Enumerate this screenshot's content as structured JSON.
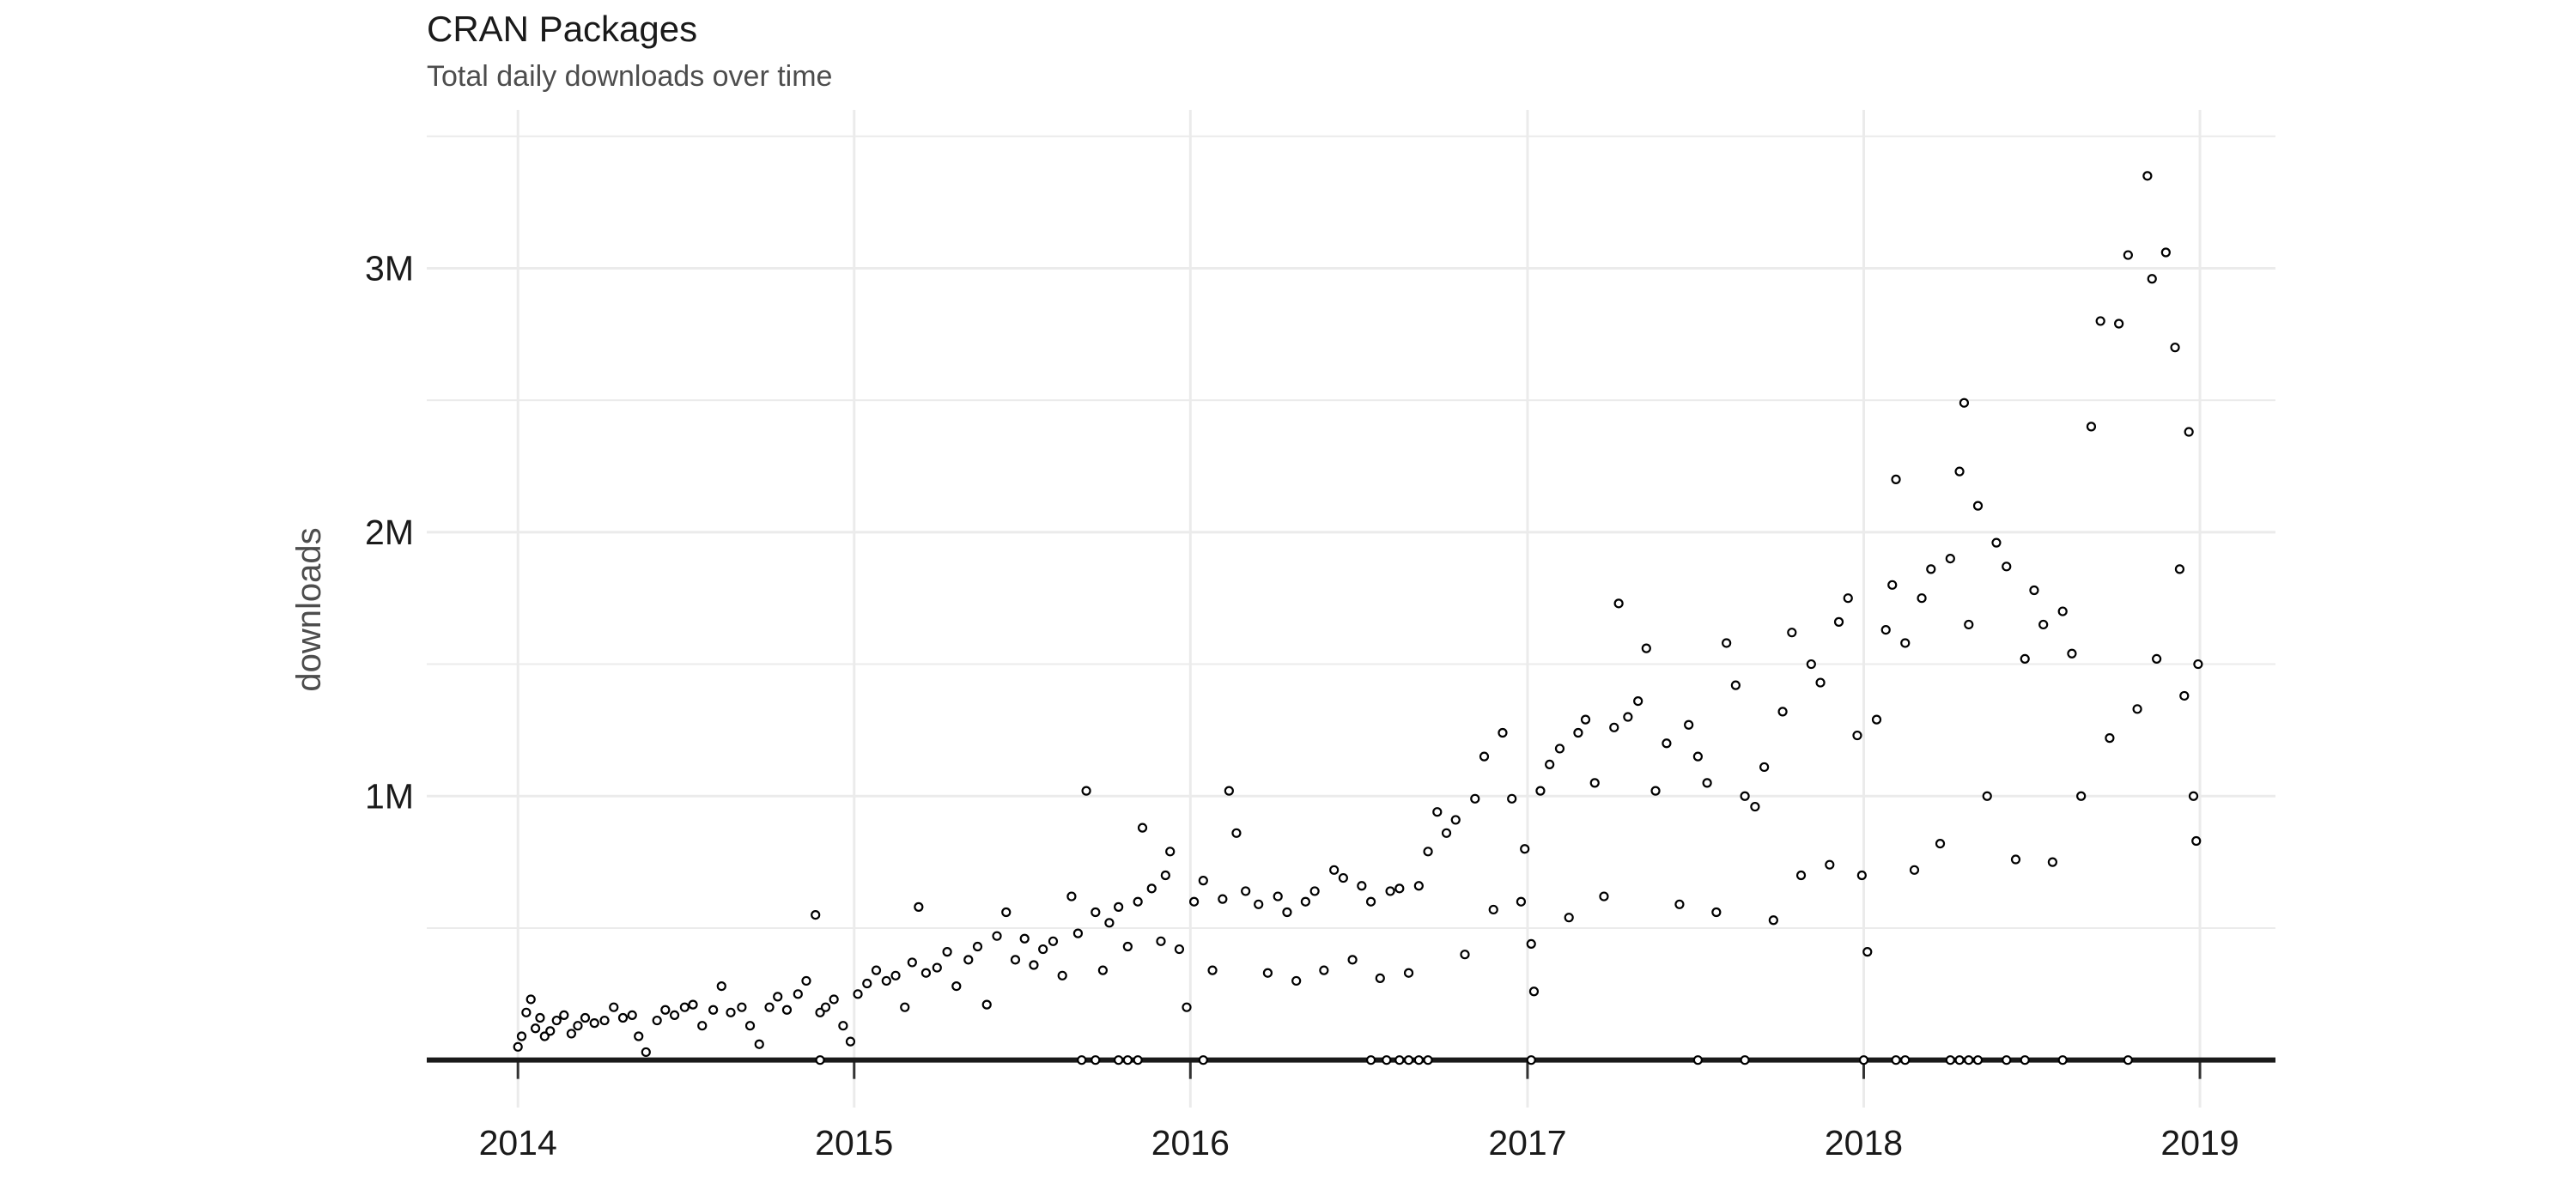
{
  "chart_data": {
    "type": "scatter",
    "title": "CRAN Packages",
    "subtitle": "Total daily downloads over time",
    "xlabel": "",
    "ylabel": "downloads",
    "x_ticks": [
      "2014",
      "2015",
      "2016",
      "2017",
      "2018",
      "2019"
    ],
    "y_ticks": [
      {
        "value": 1000000,
        "label": "1M"
      },
      {
        "value": 2000000,
        "label": "2M"
      },
      {
        "value": 3000000,
        "label": "3M"
      }
    ],
    "xlim": [
      "2013-09-24",
      "2019-03-24"
    ],
    "ylim": [
      -180000,
      3600000
    ],
    "grid": true,
    "marker": "open circle",
    "colors": {
      "point_stroke": "#000000",
      "point_fill": "#ffffff",
      "grid": "#ebebeb",
      "zero_line": "#1a1a1a"
    },
    "series": [
      {
        "points": [
          [
            "2014-01-01",
            50000
          ],
          [
            "2014-01-05",
            90000
          ],
          [
            "2014-01-10",
            180000
          ],
          [
            "2014-01-15",
            230000
          ],
          [
            "2014-01-20",
            120000
          ],
          [
            "2014-01-25",
            160000
          ],
          [
            "2014-01-30",
            90000
          ],
          [
            "2014-02-05",
            110000
          ],
          [
            "2014-02-12",
            150000
          ],
          [
            "2014-02-20",
            170000
          ],
          [
            "2014-02-28",
            100000
          ],
          [
            "2014-03-07",
            130000
          ],
          [
            "2014-03-15",
            160000
          ],
          [
            "2014-03-25",
            140000
          ],
          [
            "2014-04-05",
            150000
          ],
          [
            "2014-04-15",
            200000
          ],
          [
            "2014-04-25",
            160000
          ],
          [
            "2014-05-05",
            170000
          ],
          [
            "2014-05-12",
            90000
          ],
          [
            "2014-05-20",
            30000
          ],
          [
            "2014-06-01",
            150000
          ],
          [
            "2014-06-10",
            190000
          ],
          [
            "2014-06-20",
            170000
          ],
          [
            "2014-07-01",
            200000
          ],
          [
            "2014-07-10",
            210000
          ],
          [
            "2014-07-20",
            130000
          ],
          [
            "2014-08-01",
            190000
          ],
          [
            "2014-08-10",
            280000
          ],
          [
            "2014-08-20",
            180000
          ],
          [
            "2014-09-01",
            200000
          ],
          [
            "2014-09-10",
            130000
          ],
          [
            "2014-09-20",
            60000
          ],
          [
            "2014-10-01",
            200000
          ],
          [
            "2014-10-10",
            240000
          ],
          [
            "2014-10-20",
            190000
          ],
          [
            "2014-11-01",
            250000
          ],
          [
            "2014-11-10",
            300000
          ],
          [
            "2014-11-20",
            550000
          ],
          [
            "2014-11-25",
            180000
          ],
          [
            "2014-12-01",
            200000
          ],
          [
            "2014-12-10",
            230000
          ],
          [
            "2014-12-20",
            130000
          ],
          [
            "2014-12-28",
            70000
          ],
          [
            "2015-01-05",
            250000
          ],
          [
            "2015-01-15",
            290000
          ],
          [
            "2015-01-25",
            340000
          ],
          [
            "2015-02-05",
            300000
          ],
          [
            "2015-02-15",
            320000
          ],
          [
            "2015-02-25",
            200000
          ],
          [
            "2015-03-05",
            370000
          ],
          [
            "2015-03-12",
            580000
          ],
          [
            "2015-03-20",
            330000
          ],
          [
            "2015-04-01",
            350000
          ],
          [
            "2015-04-12",
            410000
          ],
          [
            "2015-04-22",
            280000
          ],
          [
            "2015-05-05",
            380000
          ],
          [
            "2015-05-15",
            430000
          ],
          [
            "2015-05-25",
            210000
          ],
          [
            "2015-06-05",
            470000
          ],
          [
            "2015-06-15",
            560000
          ],
          [
            "2015-06-25",
            380000
          ],
          [
            "2015-07-05",
            460000
          ],
          [
            "2015-07-15",
            360000
          ],
          [
            "2015-07-25",
            420000
          ],
          [
            "2015-08-05",
            450000
          ],
          [
            "2015-08-15",
            320000
          ],
          [
            "2015-08-25",
            620000
          ],
          [
            "2015-09-01",
            480000
          ],
          [
            "2015-09-10",
            1020000
          ],
          [
            "2015-09-20",
            560000
          ],
          [
            "2015-09-28",
            340000
          ],
          [
            "2015-10-05",
            520000
          ],
          [
            "2015-10-15",
            580000
          ],
          [
            "2015-10-25",
            430000
          ],
          [
            "2015-11-05",
            600000
          ],
          [
            "2015-11-10",
            880000
          ],
          [
            "2015-11-20",
            650000
          ],
          [
            "2015-11-30",
            450000
          ],
          [
            "2015-12-05",
            700000
          ],
          [
            "2015-12-10",
            790000
          ],
          [
            "2015-12-20",
            420000
          ],
          [
            "2015-12-28",
            200000
          ],
          [
            "2016-01-05",
            600000
          ],
          [
            "2016-01-15",
            680000
          ],
          [
            "2016-01-25",
            340000
          ],
          [
            "2016-02-05",
            610000
          ],
          [
            "2016-02-12",
            1020000
          ],
          [
            "2016-02-20",
            860000
          ],
          [
            "2016-03-01",
            640000
          ],
          [
            "2016-03-15",
            590000
          ],
          [
            "2016-03-25",
            330000
          ],
          [
            "2016-04-05",
            620000
          ],
          [
            "2016-04-15",
            560000
          ],
          [
            "2016-04-25",
            300000
          ],
          [
            "2016-05-05",
            600000
          ],
          [
            "2016-05-15",
            640000
          ],
          [
            "2016-05-25",
            340000
          ],
          [
            "2016-06-05",
            720000
          ],
          [
            "2016-06-15",
            690000
          ],
          [
            "2016-06-25",
            380000
          ],
          [
            "2016-07-05",
            660000
          ],
          [
            "2016-07-15",
            600000
          ],
          [
            "2016-07-25",
            310000
          ],
          [
            "2016-08-05",
            640000
          ],
          [
            "2016-08-15",
            650000
          ],
          [
            "2016-08-25",
            330000
          ],
          [
            "2016-09-05",
            660000
          ],
          [
            "2016-09-15",
            790000
          ],
          [
            "2016-09-25",
            940000
          ],
          [
            "2016-10-05",
            860000
          ],
          [
            "2016-10-15",
            910000
          ],
          [
            "2016-10-25",
            400000
          ],
          [
            "2016-11-05",
            990000
          ],
          [
            "2016-11-15",
            1150000
          ],
          [
            "2016-11-25",
            570000
          ],
          [
            "2016-12-05",
            1240000
          ],
          [
            "2016-12-15",
            990000
          ],
          [
            "2016-12-25",
            600000
          ],
          [
            "2016-12-29",
            800000
          ],
          [
            "2017-01-05",
            440000
          ],
          [
            "2017-01-08",
            260000
          ],
          [
            "2017-01-15",
            1020000
          ],
          [
            "2017-01-25",
            1120000
          ],
          [
            "2017-02-05",
            1180000
          ],
          [
            "2017-02-15",
            540000
          ],
          [
            "2017-02-25",
            1240000
          ],
          [
            "2017-03-05",
            1290000
          ],
          [
            "2017-03-15",
            1050000
          ],
          [
            "2017-03-25",
            620000
          ],
          [
            "2017-04-05",
            1260000
          ],
          [
            "2017-04-10",
            1730000
          ],
          [
            "2017-04-20",
            1300000
          ],
          [
            "2017-05-01",
            1360000
          ],
          [
            "2017-05-10",
            1560000
          ],
          [
            "2017-05-20",
            1020000
          ],
          [
            "2017-06-01",
            1200000
          ],
          [
            "2017-06-15",
            590000
          ],
          [
            "2017-06-25",
            1270000
          ],
          [
            "2017-07-05",
            1150000
          ],
          [
            "2017-07-15",
            1050000
          ],
          [
            "2017-07-25",
            560000
          ],
          [
            "2017-08-05",
            1580000
          ],
          [
            "2017-08-15",
            1420000
          ],
          [
            "2017-08-25",
            1000000
          ],
          [
            "2017-09-05",
            960000
          ],
          [
            "2017-09-15",
            1110000
          ],
          [
            "2017-09-25",
            530000
          ],
          [
            "2017-10-05",
            1320000
          ],
          [
            "2017-10-15",
            1620000
          ],
          [
            "2017-10-25",
            700000
          ],
          [
            "2017-11-05",
            1500000
          ],
          [
            "2017-11-15",
            1430000
          ],
          [
            "2017-11-25",
            740000
          ],
          [
            "2017-12-05",
            1660000
          ],
          [
            "2017-12-15",
            1750000
          ],
          [
            "2017-12-25",
            1230000
          ],
          [
            "2017-12-30",
            700000
          ],
          [
            "2018-01-05",
            410000
          ],
          [
            "2018-01-15",
            1290000
          ],
          [
            "2018-01-25",
            1630000
          ],
          [
            "2018-02-01",
            1800000
          ],
          [
            "2018-02-05",
            2200000
          ],
          [
            "2018-02-15",
            1580000
          ],
          [
            "2018-02-25",
            720000
          ],
          [
            "2018-03-05",
            1750000
          ],
          [
            "2018-03-15",
            1860000
          ],
          [
            "2018-03-25",
            820000
          ],
          [
            "2018-04-05",
            1900000
          ],
          [
            "2018-04-15",
            2230000
          ],
          [
            "2018-04-20",
            2490000
          ],
          [
            "2018-04-25",
            1650000
          ],
          [
            "2018-05-05",
            2100000
          ],
          [
            "2018-05-15",
            1000000
          ],
          [
            "2018-05-25",
            1960000
          ],
          [
            "2018-06-05",
            1870000
          ],
          [
            "2018-06-15",
            760000
          ],
          [
            "2018-06-25",
            1520000
          ],
          [
            "2018-07-05",
            1780000
          ],
          [
            "2018-07-15",
            1650000
          ],
          [
            "2018-07-25",
            750000
          ],
          [
            "2018-08-05",
            1700000
          ],
          [
            "2018-08-15",
            1540000
          ],
          [
            "2018-08-25",
            1000000
          ],
          [
            "2018-09-05",
            2400000
          ],
          [
            "2018-09-15",
            2800000
          ],
          [
            "2018-09-25",
            1220000
          ],
          [
            "2018-10-05",
            2790000
          ],
          [
            "2018-10-15",
            3050000
          ],
          [
            "2018-10-25",
            1330000
          ],
          [
            "2018-11-05",
            3350000
          ],
          [
            "2018-11-10",
            2960000
          ],
          [
            "2018-11-15",
            1520000
          ],
          [
            "2018-11-25",
            3060000
          ],
          [
            "2018-12-05",
            2700000
          ],
          [
            "2018-12-10",
            1860000
          ],
          [
            "2018-12-15",
            1380000
          ],
          [
            "2018-12-20",
            2380000
          ],
          [
            "2018-12-25",
            1000000
          ],
          [
            "2018-12-28",
            830000
          ],
          [
            "2018-12-30",
            1500000
          ],
          [
            "2014-11-25",
            0
          ],
          [
            "2015-09-05",
            0
          ],
          [
            "2015-09-20",
            0
          ],
          [
            "2015-10-15",
            0
          ],
          [
            "2015-10-25",
            0
          ],
          [
            "2015-11-05",
            0
          ],
          [
            "2016-01-15",
            0
          ],
          [
            "2016-07-15",
            0
          ],
          [
            "2016-08-01",
            0
          ],
          [
            "2016-08-15",
            0
          ],
          [
            "2016-08-25",
            0
          ],
          [
            "2016-09-05",
            0
          ],
          [
            "2016-09-15",
            0
          ],
          [
            "2017-01-05",
            0
          ],
          [
            "2017-07-05",
            0
          ],
          [
            "2017-08-25",
            0
          ],
          [
            "2018-01-01",
            0
          ],
          [
            "2018-02-05",
            0
          ],
          [
            "2018-02-15",
            0
          ],
          [
            "2018-04-05",
            0
          ],
          [
            "2018-04-15",
            0
          ],
          [
            "2018-04-25",
            0
          ],
          [
            "2018-05-05",
            0
          ],
          [
            "2018-06-05",
            0
          ],
          [
            "2018-06-25",
            0
          ],
          [
            "2018-08-05",
            0
          ],
          [
            "2018-10-15",
            0
          ]
        ]
      }
    ]
  }
}
